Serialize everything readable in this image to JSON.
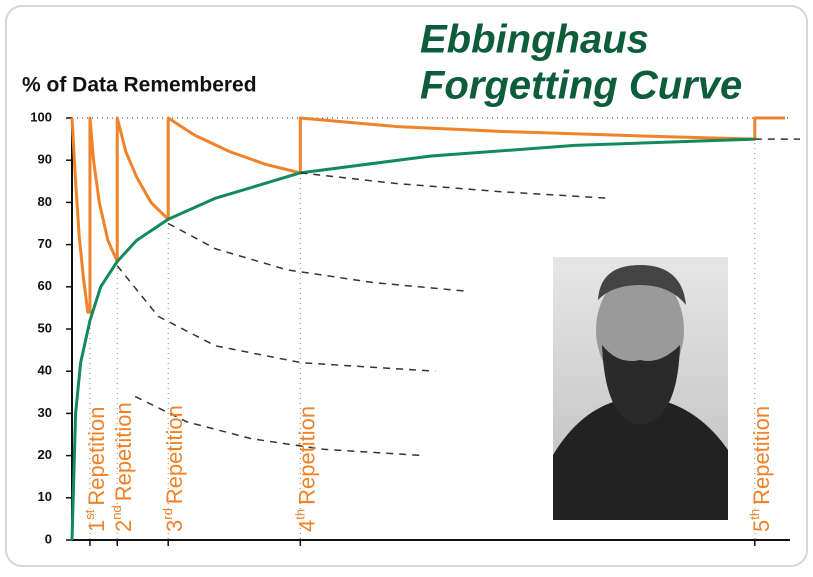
{
  "chart_data": {
    "type": "line",
    "title": [
      "Ebbinghaus",
      "Forgetting Curve"
    ],
    "y_label": "% of Data Remembered",
    "xlim": [
      0,
      100
    ],
    "ylim": [
      0,
      100
    ],
    "yticks": [
      0,
      10,
      20,
      30,
      40,
      50,
      60,
      70,
      80,
      90,
      100
    ],
    "grid": false,
    "series": [
      {
        "color": "#f0822a",
        "width": 3,
        "dash": false,
        "x": [
          0,
          0.5,
          1,
          1.6,
          2.2,
          2.5,
          2.5,
          3,
          3.8,
          5,
          6.3,
          6.3,
          7.5,
          9,
          11,
          13.4,
          13.4,
          17,
          22,
          27,
          31.8,
          31.8,
          45,
          60,
          80,
          95.1,
          95.1,
          99.3
        ],
        "values": [
          100,
          85,
          72,
          62,
          54,
          54,
          100,
          90,
          80,
          71,
          66,
          100,
          92,
          86,
          80,
          76,
          100,
          96,
          92,
          89,
          87,
          100,
          98,
          96.8,
          95.7,
          95,
          100,
          100
        ]
      },
      {
        "color": "#128a5c",
        "width": 3,
        "dash": false,
        "x": [
          0,
          0.5,
          1.2,
          2.5,
          4,
          6.3,
          9,
          13.4,
          20,
          31.8,
          50,
          70,
          95.1
        ],
        "values": [
          0,
          30,
          42,
          52,
          60,
          66,
          71,
          76,
          81,
          87,
          91,
          93.5,
          95
        ]
      },
      {
        "color": "#333333",
        "width": 1.5,
        "dash": true,
        "x": [
          31.8,
          45,
          60,
          74.6
        ],
        "values": [
          87,
          84.5,
          82.5,
          81
        ]
      },
      {
        "color": "#333333",
        "width": 1.5,
        "dash": true,
        "x": [
          13.4,
          20,
          30,
          42,
          54.7
        ],
        "values": [
          75,
          69,
          64,
          61,
          59
        ]
      },
      {
        "color": "#333333",
        "width": 1.5,
        "dash": true,
        "x": [
          6.3,
          12,
          20,
          32,
          50.6
        ],
        "values": [
          65,
          53,
          46,
          42,
          40
        ]
      },
      {
        "color": "#333333",
        "width": 1.5,
        "dash": true,
        "x": [
          8.8,
          16,
          25,
          35,
          49.1
        ],
        "values": [
          34,
          28,
          24,
          21.5,
          20
        ]
      },
      {
        "color": "#333333",
        "width": 1.5,
        "dash": true,
        "x": [
          95.1,
          101.4
        ],
        "values": [
          95,
          95
        ]
      }
    ],
    "repetitions": [
      {
        "number": "1",
        "suffix": "st",
        "text": "Repetition",
        "x": 2.5
      },
      {
        "number": "2",
        "suffix": "nd",
        "text": "Repetition",
        "x": 6.3
      },
      {
        "number": "3",
        "suffix": "rd",
        "text": "Repetition",
        "x": 13.4
      },
      {
        "number": "4",
        "suffix": "th",
        "text": "Repetition",
        "x": 31.8
      },
      {
        "number": "5",
        "suffix": "th",
        "text": "Repetition",
        "x": 95.1
      }
    ]
  }
}
